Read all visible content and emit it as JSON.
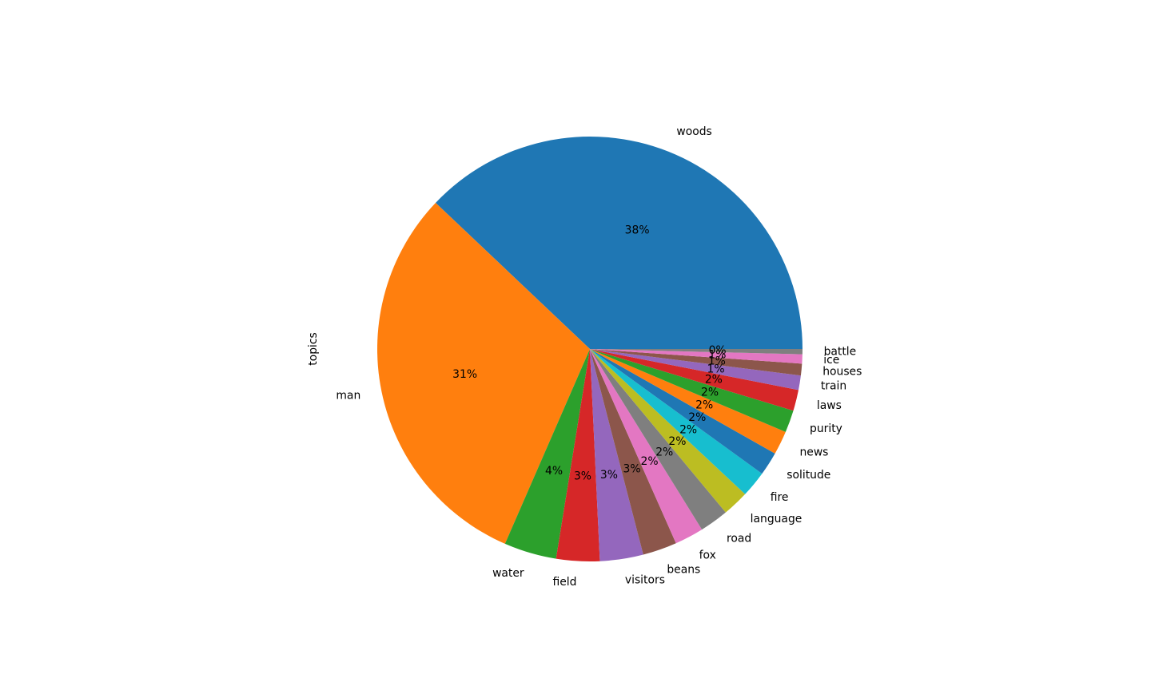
{
  "chart_data": {
    "type": "pie",
    "ylabel": "topics",
    "start_angle": 0,
    "direction": "counterclockwise",
    "colors": [
      "#1f77b4",
      "#ff7f0e",
      "#2ca02c",
      "#d62728",
      "#9467bd",
      "#8c564b",
      "#e377c2",
      "#7f7f7f",
      "#bcbd22",
      "#17becf"
    ],
    "slices": [
      {
        "label": "woods",
        "value": 38.0,
        "pct_text": "38%"
      },
      {
        "label": "man",
        "value": 30.6,
        "pct_text": "31%"
      },
      {
        "label": "water",
        "value": 4.0,
        "pct_text": "4%"
      },
      {
        "label": "field",
        "value": 3.3,
        "pct_text": "3%"
      },
      {
        "label": "visitors",
        "value": 3.3,
        "pct_text": "3%"
      },
      {
        "label": "beans",
        "value": 2.6,
        "pct_text": "3%"
      },
      {
        "label": "fox",
        "value": 2.2,
        "pct_text": "2%"
      },
      {
        "label": "road",
        "value": 2.2,
        "pct_text": "2%"
      },
      {
        "label": "language",
        "value": 2.0,
        "pct_text": "2%"
      },
      {
        "label": "fire",
        "value": 2.0,
        "pct_text": "2%"
      },
      {
        "label": "solitude",
        "value": 1.8,
        "pct_text": "2%"
      },
      {
        "label": "news",
        "value": 1.8,
        "pct_text": "2%"
      },
      {
        "label": "purity",
        "value": 1.7,
        "pct_text": "2%"
      },
      {
        "label": "laws",
        "value": 1.6,
        "pct_text": "2%"
      },
      {
        "label": "train",
        "value": 1.1,
        "pct_text": "1%"
      },
      {
        "label": "houses",
        "value": 0.9,
        "pct_text": "1%"
      },
      {
        "label": "ice",
        "value": 0.7,
        "pct_text": "1%"
      },
      {
        "label": "battle",
        "value": 0.4,
        "pct_text": "0%"
      }
    ]
  }
}
